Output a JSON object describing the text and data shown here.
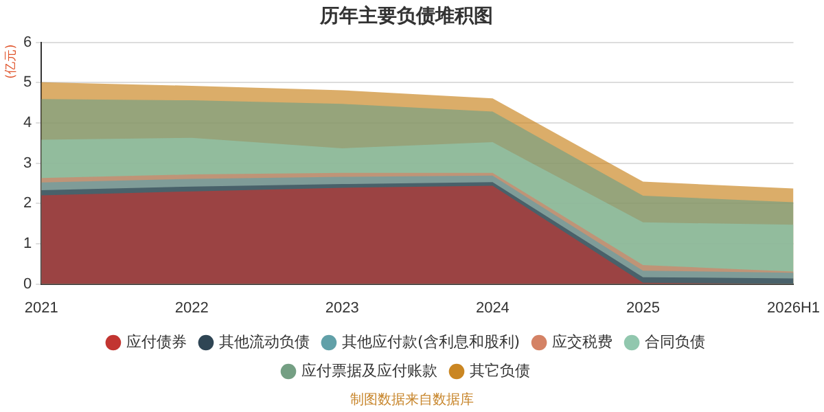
{
  "chart_data": {
    "type": "area",
    "title": "历年主要负债堆积图",
    "ylabel": "(亿元)",
    "stacked": true,
    "categories": [
      "2021",
      "2022",
      "2023",
      "2024",
      "2025",
      "2026H1"
    ],
    "series": [
      {
        "name": "应付债券",
        "color": "#c23531",
        "values": [
          2.2,
          2.3,
          2.39,
          2.44,
          0.03,
          0
        ]
      },
      {
        "name": "其他流动负债",
        "color": "#2f4554",
        "values": [
          0.13,
          0.12,
          0.09,
          0.09,
          0.14,
          0.14
        ]
      },
      {
        "name": "其他应付款(含利息和股利)",
        "color": "#61a0a8",
        "values": [
          0.19,
          0.19,
          0.18,
          0.16,
          0.16,
          0.14
        ]
      },
      {
        "name": "应交税费",
        "color": "#d48265",
        "values": [
          0.11,
          0.11,
          0.1,
          0.07,
          0.14,
          0.03
        ]
      },
      {
        "name": "合同负债",
        "color": "#91c7ae",
        "values": [
          0.95,
          0.91,
          0.61,
          0.76,
          1.06,
          1.16
        ]
      },
      {
        "name": "应付票据及应付账款",
        "color": "#749f83",
        "values": [
          1.01,
          0.93,
          1.1,
          0.76,
          0.66,
          0.56
        ]
      },
      {
        "name": "其它负债",
        "color": "#ca8622",
        "values": [
          0.42,
          0.36,
          0.34,
          0.33,
          0.35,
          0.34
        ]
      }
    ],
    "ylim": [
      0,
      6
    ],
    "yticks": [
      0,
      1,
      2,
      3,
      4,
      5,
      6
    ],
    "grid": "y",
    "legend": "bottom",
    "annotations": [
      "制图数据来自数据库"
    ]
  }
}
